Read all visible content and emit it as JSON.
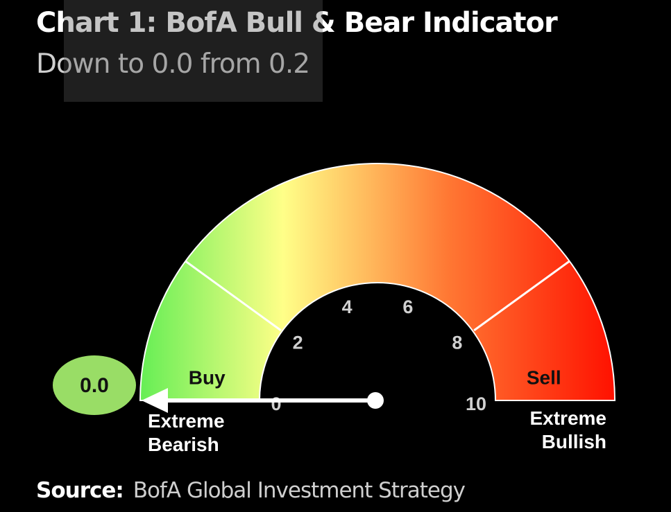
{
  "chart_data": {
    "type": "gauge",
    "title": "Chart 1: BofA Bull & Bear Indicator",
    "subtitle": "Down to 0.0 from 0.2",
    "value": 0.0,
    "value_label": "0.0",
    "previous_value": 0.2,
    "range": [
      0,
      10
    ],
    "ticks": [
      "0",
      "2",
      "4",
      "6",
      "8",
      "10"
    ],
    "zones": [
      {
        "label": "Buy",
        "from": 0,
        "to": 2
      },
      {
        "label": "Sell",
        "from": 8,
        "to": 10
      }
    ],
    "end_labels": {
      "low": [
        "Extreme",
        "Bearish"
      ],
      "high": [
        "Extreme",
        "Bullish"
      ]
    },
    "colors": {
      "low": "#66ee55",
      "mid": "#ffff88",
      "high_mid": "#ff7733",
      "high": "#ff1100",
      "value_badge": "#99dd66"
    }
  },
  "source": {
    "label": "Source:",
    "text": "BofA Global Investment Strategy"
  }
}
